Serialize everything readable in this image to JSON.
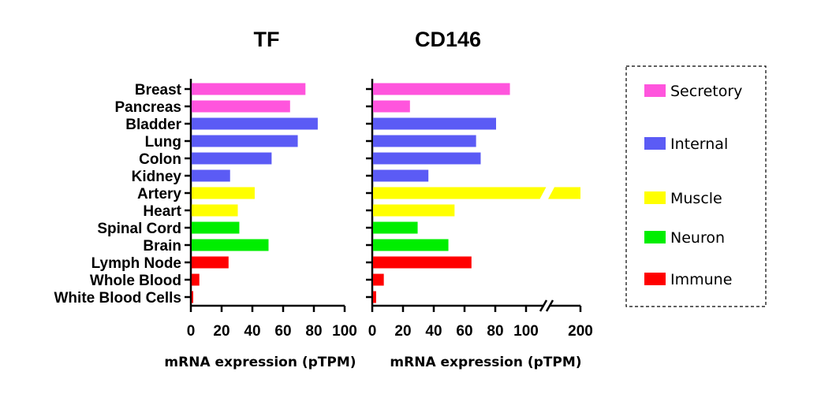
{
  "chart_data": [
    {
      "type": "bar",
      "orientation": "horizontal",
      "title": "TF",
      "xlabel": "mRNA expression (pTPM)",
      "categories": [
        "Breast",
        "Pancreas",
        "Bladder",
        "Lung",
        "Colon",
        "Kidney",
        "Artery",
        "Heart",
        "Spinal Cord",
        "Brain",
        "Lymph Node",
        "Whole Blood",
        "White Blood Cells"
      ],
      "values": [
        74,
        64,
        82,
        69,
        52,
        25,
        41,
        30,
        31,
        50,
        24,
        5,
        1
      ],
      "groups": [
        "Secretory",
        "Secretory",
        "Internal",
        "Internal",
        "Internal",
        "Internal",
        "Muscle",
        "Muscle",
        "Neuron",
        "Neuron",
        "Immune",
        "Immune",
        "Immune"
      ],
      "xlim": [
        0,
        100
      ],
      "xticks": [
        "0",
        "20",
        "40",
        "60",
        "80",
        "100"
      ]
    },
    {
      "type": "bar",
      "orientation": "horizontal",
      "title": "CD146",
      "xlabel": "mRNA expression (pTPM)",
      "categories": [
        "Breast",
        "Pancreas",
        "Bladder",
        "Lung",
        "Colon",
        "Kidney",
        "Artery",
        "Heart",
        "Spinal Cord",
        "Brain",
        "Lymph Node",
        "Whole Blood",
        "White Blood Cells"
      ],
      "values": [
        89,
        24,
        80,
        67,
        70,
        36,
        200,
        53,
        29,
        49,
        64,
        7,
        2
      ],
      "groups": [
        "Secretory",
        "Secretory",
        "Internal",
        "Internal",
        "Internal",
        "Internal",
        "Muscle",
        "Muscle",
        "Neuron",
        "Neuron",
        "Immune",
        "Immune",
        "Immune"
      ],
      "xlim": [
        0,
        200
      ],
      "axis_break": [
        110,
        190
      ],
      "xticks": [
        "0",
        "20",
        "40",
        "60",
        "80",
        "100",
        "200"
      ]
    }
  ],
  "legend": {
    "items": [
      {
        "label": "Secretory",
        "color": "#ff55dd"
      },
      {
        "label": "Internal",
        "color": "#5b5bf5"
      },
      {
        "label": "Muscle",
        "color": "#ffff00"
      },
      {
        "label": "Neuron",
        "color": "#00ee00"
      },
      {
        "label": "Immune",
        "color": "#ff0000"
      }
    ]
  },
  "colors": {
    "Secretory": "#ff55dd",
    "Internal": "#5b5bf5",
    "Muscle": "#ffff00",
    "Neuron": "#00ee00",
    "Immune": "#ff0000"
  }
}
